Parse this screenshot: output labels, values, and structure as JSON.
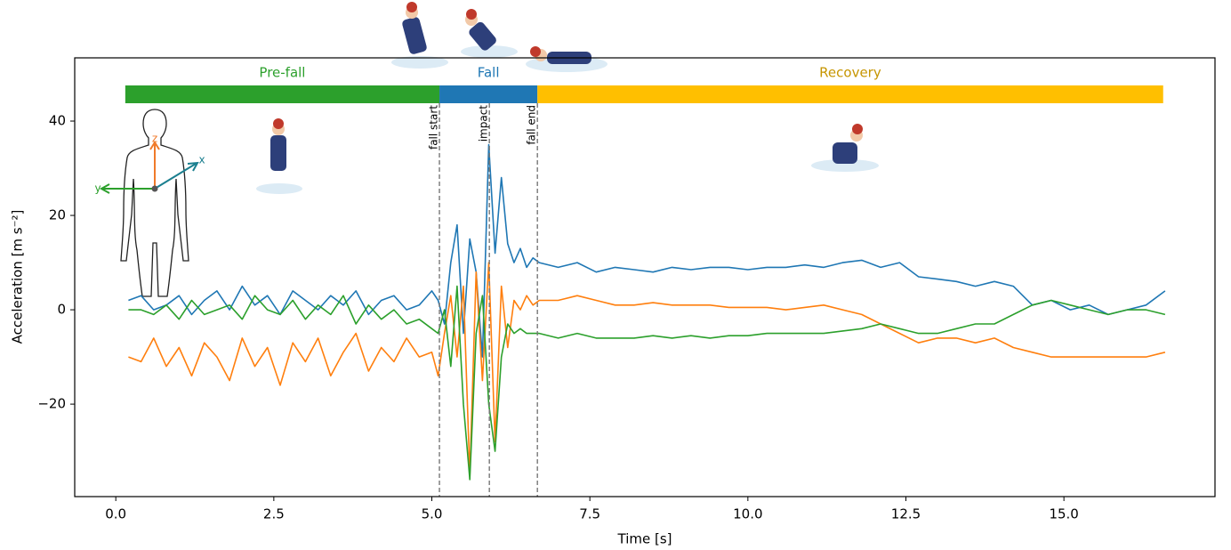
{
  "chart_data": {
    "type": "line",
    "xlabel": "Time [s]",
    "ylabel": "Acceleration [m s⁻²]",
    "xlim": [
      -0.65,
      17.39
    ],
    "ylim": [
      -39.6,
      53.4
    ],
    "xticks": [
      {
        "value": 0,
        "label": "0.0"
      },
      {
        "value": 2.5,
        "label": "2.5"
      },
      {
        "value": 5,
        "label": "5.0"
      },
      {
        "value": 7.5,
        "label": "7.5"
      },
      {
        "value": 10,
        "label": "10.0"
      },
      {
        "value": 12.5,
        "label": "12.5"
      },
      {
        "value": 15,
        "label": "15.0"
      }
    ],
    "yticks": [
      {
        "value": -20,
        "label": "−20"
      },
      0,
      20,
      40
    ],
    "phases": [
      {
        "name": "Pre-fall",
        "start": 0.15,
        "end": 5.12,
        "color": "#2ca02c"
      },
      {
        "name": "Fall",
        "start": 5.12,
        "end": 6.67,
        "color": "#1f77b4"
      },
      {
        "name": "Recovery",
        "start": 6.67,
        "end": 16.57,
        "color": "#ffbf00"
      }
    ],
    "events": [
      {
        "label": "fall start",
        "x": 5.12
      },
      {
        "label": "impact",
        "x": 5.91
      },
      {
        "label": "fall end",
        "x": 6.67
      }
    ],
    "body_axis_labels": {
      "x": "x",
      "y": "y",
      "z": "z"
    },
    "x": [
      0.2,
      0.4,
      0.6,
      0.8,
      1.0,
      1.2,
      1.4,
      1.6,
      1.8,
      2.0,
      2.2,
      2.4,
      2.6,
      2.8,
      3.0,
      3.2,
      3.4,
      3.6,
      3.8,
      4.0,
      4.2,
      4.4,
      4.6,
      4.8,
      5.0,
      5.1,
      5.2,
      5.3,
      5.4,
      5.5,
      5.6,
      5.7,
      5.8,
      5.9,
      6.0,
      6.1,
      6.2,
      6.3,
      6.4,
      6.5,
      6.6,
      6.7,
      7.0,
      7.3,
      7.6,
      7.9,
      8.2,
      8.5,
      8.8,
      9.1,
      9.4,
      9.7,
      10.0,
      10.3,
      10.6,
      10.9,
      11.2,
      11.5,
      11.8,
      12.1,
      12.4,
      12.7,
      13.0,
      13.3,
      13.6,
      13.9,
      14.2,
      14.5,
      14.8,
      15.1,
      15.4,
      15.7,
      16.0,
      16.3,
      16.6
    ],
    "series": [
      {
        "color": "#1f77b4",
        "values": [
          2,
          3,
          0,
          1,
          3,
          -1,
          2,
          4,
          0,
          5,
          1,
          3,
          -1,
          4,
          2,
          0,
          3,
          1,
          4,
          -1,
          2,
          3,
          0,
          1,
          4,
          2,
          -3,
          10,
          18,
          -5,
          15,
          8,
          -10,
          35,
          12,
          28,
          14,
          10,
          13,
          9,
          11,
          10,
          9,
          10,
          8,
          9,
          8.5,
          8,
          9,
          8.5,
          9,
          9,
          8.5,
          9,
          9,
          9.5,
          9,
          10,
          10.5,
          9,
          10,
          7,
          6.5,
          6,
          5,
          6,
          5,
          1,
          2,
          0,
          1,
          -1,
          0,
          1,
          4
        ]
      },
      {
        "color": "#ff7f0e",
        "values": [
          -10,
          -11,
          -6,
          -12,
          -8,
          -14,
          -7,
          -10,
          -15,
          -6,
          -12,
          -8,
          -16,
          -7,
          -11,
          -6,
          -14,
          -9,
          -5,
          -13,
          -8,
          -11,
          -6,
          -10,
          -9,
          -14,
          -5,
          3,
          -10,
          5,
          -35,
          8,
          -15,
          10,
          -28,
          5,
          -8,
          2,
          0,
          3,
          1,
          2,
          2,
          3,
          2,
          1,
          1,
          1.5,
          1,
          1,
          1,
          0.5,
          0.5,
          0.5,
          0,
          0.5,
          1,
          0,
          -1,
          -3,
          -5,
          -7,
          -6,
          -6,
          -7,
          -6,
          -8,
          -9,
          -10,
          -10,
          -10,
          -10,
          -10,
          -10,
          -9
        ]
      },
      {
        "color": "#2ca02c",
        "values": [
          0,
          0,
          -1,
          1,
          -2,
          2,
          -1,
          0,
          1,
          -2,
          3,
          0,
          -1,
          2,
          -2,
          1,
          -1,
          3,
          -3,
          1,
          -2,
          0,
          -3,
          -2,
          -4,
          -5,
          0,
          -12,
          5,
          -20,
          -36,
          -5,
          3,
          -20,
          -30,
          -10,
          -3,
          -5,
          -4,
          -5,
          -5,
          -5,
          -6,
          -5,
          -6,
          -6,
          -6,
          -5.5,
          -6,
          -5.5,
          -6,
          -5.5,
          -5.5,
          -5,
          -5,
          -5,
          -5,
          -4.5,
          -4,
          -3,
          -4,
          -5,
          -5,
          -4,
          -3,
          -3,
          -1,
          1,
          2,
          1,
          0,
          -1,
          0,
          0,
          -1
        ]
      }
    ]
  }
}
